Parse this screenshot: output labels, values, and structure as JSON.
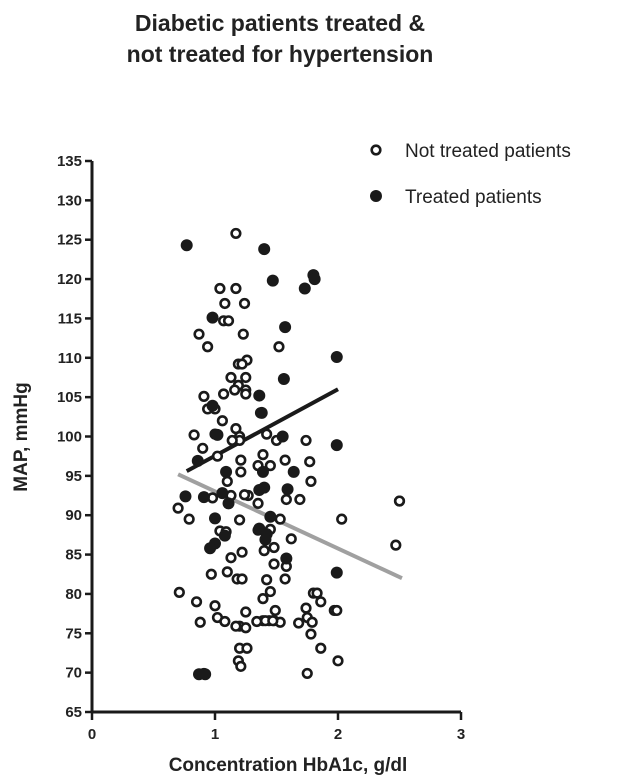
{
  "chart_data": {
    "type": "scatter",
    "title_lines": [
      "Diabetic patients treated &",
      "not treated for hypertension"
    ],
    "xlabel": "Concentration HbA1c, g/dl",
    "ylabel": "MAP, mmHg",
    "xlim": [
      0,
      3
    ],
    "ylim": [
      65,
      135
    ],
    "xticks": [
      0,
      1,
      2,
      3
    ],
    "yticks": [
      65,
      70,
      75,
      80,
      85,
      90,
      95,
      100,
      105,
      110,
      115,
      120,
      125,
      130,
      135
    ],
    "grid": false,
    "legend_position": "top-right",
    "colors": {
      "ink": "#1a1a1a",
      "open_fill": "#ffffff",
      "treated_line": "#1a1a1a",
      "not_treated_line": "#a0a0a0"
    },
    "series": [
      {
        "name": "Not treated patients",
        "marker": "open-circle",
        "x": [
          1.17,
          1.04,
          1.17,
          1.08,
          1.24,
          1.07,
          1.11,
          0.87,
          1.23,
          1.52,
          0.94,
          1.26,
          1.19,
          1.22,
          1.13,
          1.25,
          1.19,
          1.16,
          1.25,
          1.25,
          1.07,
          0.91,
          0.94,
          1.0,
          1.06,
          1.37,
          1.17,
          0.83,
          1.0,
          1.42,
          1.2,
          1.2,
          1.14,
          0.9,
          1.5,
          1.74,
          1.39,
          1.02,
          1.57,
          1.21,
          1.77,
          1.35,
          1.45,
          1.21,
          1.78,
          1.1,
          1.27,
          1.13,
          1.58,
          1.69,
          1.35,
          0.98,
          1.24,
          2.03,
          0.7,
          0.79,
          1.53,
          1.2,
          1.35,
          1.45,
          1.04,
          1.09,
          1.62,
          2.47,
          1.4,
          1.48,
          1.22,
          1.13,
          1.48,
          0.97,
          1.58,
          1.1,
          1.18,
          1.22,
          1.42,
          1.57,
          1.45,
          1.39,
          1.8,
          1.83,
          1.86,
          1.74,
          1.97,
          1.99,
          0.71,
          1.49,
          1.25,
          1.0,
          0.85,
          1.75,
          1.02,
          1.39,
          1.44,
          1.41,
          1.48,
          1.68,
          0.88,
          1.79,
          1.53,
          1.34,
          1.47,
          1.08,
          1.2,
          1.25,
          1.78,
          1.17,
          1.86,
          1.2,
          1.26,
          2.0,
          1.75,
          0.91,
          1.19,
          1.21,
          2.5,
          2.5
        ],
        "y": [
          125.8,
          118.8,
          118.8,
          116.9,
          116.9,
          114.7,
          114.7,
          113.0,
          113.0,
          111.4,
          111.4,
          109.7,
          109.2,
          109.2,
          107.5,
          107.5,
          106.5,
          105.9,
          105.9,
          105.4,
          105.4,
          105.1,
          103.5,
          103.5,
          102.0,
          103.0,
          101.0,
          100.2,
          100.3,
          100.3,
          100.0,
          99.5,
          99.5,
          98.5,
          99.5,
          99.5,
          97.7,
          97.5,
          97.0,
          97.0,
          96.8,
          96.3,
          96.3,
          95.5,
          94.3,
          94.3,
          92.5,
          92.5,
          92.0,
          92.0,
          91.5,
          92.2,
          92.6,
          89.5,
          90.9,
          89.5,
          89.5,
          89.4,
          88.1,
          88.2,
          88.0,
          87.9,
          87.0,
          86.2,
          85.5,
          85.9,
          85.3,
          84.6,
          83.8,
          82.5,
          83.5,
          82.8,
          81.9,
          81.9,
          81.8,
          81.9,
          80.3,
          79.4,
          80.1,
          80.1,
          79.0,
          78.2,
          77.9,
          77.9,
          80.2,
          77.9,
          77.7,
          78.5,
          79.0,
          77.0,
          77.0,
          76.6,
          76.6,
          76.6,
          76.6,
          76.3,
          76.4,
          76.4,
          76.4,
          76.5,
          76.6,
          76.5,
          75.9,
          75.7,
          74.9,
          75.9,
          73.1,
          73.1,
          73.1,
          71.5,
          69.9,
          69.9,
          71.5,
          70.8,
          91.8,
          91.8
        ]
      },
      {
        "name": "Treated patients",
        "marker": "filled-circle",
        "x": [
          0.77,
          1.4,
          1.8,
          1.81,
          1.47,
          1.73,
          1.57,
          0.98,
          1.99,
          1.56,
          1.36,
          1.38,
          0.98,
          1.02,
          1.55,
          1.99,
          0.86,
          1.39,
          1.09,
          1.64,
          1.4,
          1.36,
          1.59,
          1.06,
          0.76,
          0.91,
          1.11,
          1.45,
          1.0,
          1.08,
          1.36,
          1.42,
          1.41,
          1.0,
          0.96,
          1.58,
          1.99,
          0.92,
          0.87
        ],
        "y": [
          124.3,
          123.8,
          120.5,
          120.0,
          119.8,
          118.8,
          113.9,
          115.1,
          110.1,
          107.3,
          105.2,
          103.0,
          103.9,
          100.2,
          100.0,
          98.9,
          96.9,
          95.5,
          95.5,
          95.5,
          93.5,
          93.2,
          93.3,
          92.8,
          92.4,
          92.3,
          91.5,
          89.8,
          89.6,
          87.4,
          88.3,
          87.6,
          86.9,
          86.4,
          85.8,
          84.5,
          82.7,
          69.8,
          69.8
        ]
      }
    ],
    "regression_lines": [
      {
        "series": "Treated patients",
        "x": [
          0.77,
          2.0
        ],
        "y": [
          95.6,
          106.0
        ]
      },
      {
        "series": "Not treated patients",
        "x": [
          0.7,
          2.52
        ],
        "y": [
          95.2,
          82.0
        ]
      }
    ]
  }
}
